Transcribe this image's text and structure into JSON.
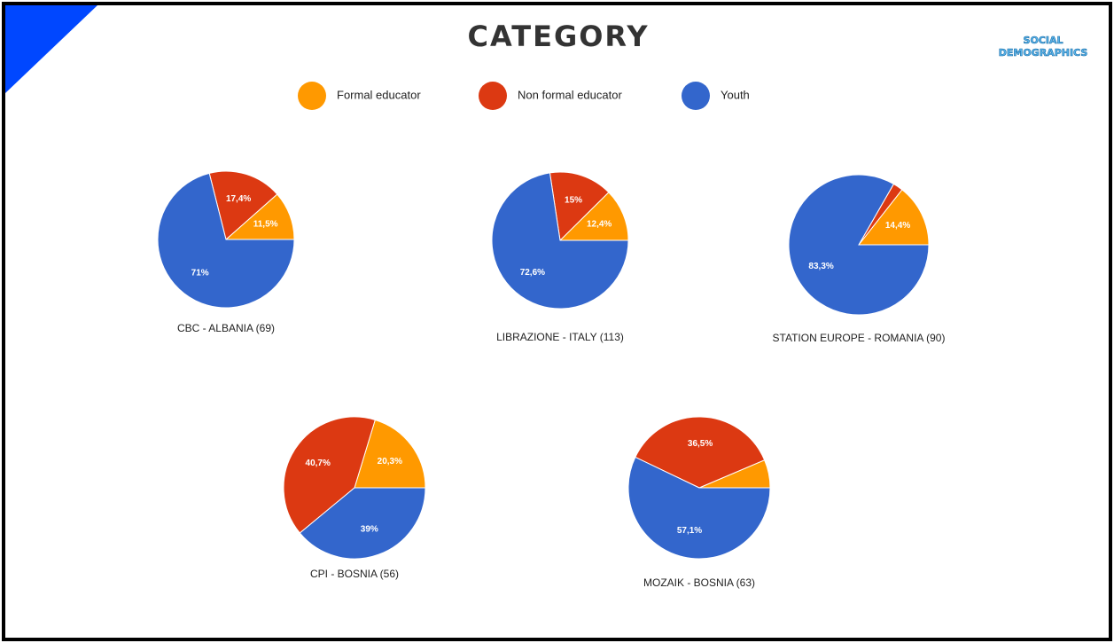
{
  "header": {
    "title": "CATEGORY",
    "logo": [
      "SOCIAL",
      "DEMOGRAPHICS"
    ]
  },
  "chart_data": [
    {
      "type": "pie",
      "title": "CBC - ALBANIA (69)",
      "categories": [
        "Formal educator",
        "Non formal educator",
        "Youth"
      ],
      "colors": [
        "#ff9900",
        "#dc3912",
        "#3366cc"
      ],
      "values": [
        11.5,
        17.4,
        71
      ],
      "value_labels": [
        "11,5%",
        "17,4%",
        "71%"
      ]
    },
    {
      "type": "pie",
      "title": "LIBRAZIONE - ITALY (113)",
      "categories": [
        "Formal educator",
        "Non formal educator",
        "Youth"
      ],
      "colors": [
        "#ff9900",
        "#dc3912",
        "#3366cc"
      ],
      "values": [
        12.4,
        15,
        72.6
      ],
      "value_labels": [
        "12,4%",
        "15%",
        "72,6%"
      ]
    },
    {
      "type": "pie",
      "title": "STATION EUROPE - ROMANIA (90)",
      "categories": [
        "Formal educator",
        "Non formal educator",
        "Youth"
      ],
      "colors": [
        "#ff9900",
        "#dc3912",
        "#3366cc"
      ],
      "values": [
        14.4,
        2.3,
        83.3
      ],
      "value_labels": [
        "14,4%",
        null,
        "83,3%"
      ]
    },
    {
      "type": "pie",
      "title": "CPI - BOSNIA (56)",
      "categories": [
        "Formal educator",
        "Non formal educator",
        "Youth"
      ],
      "colors": [
        "#ff9900",
        "#dc3912",
        "#3366cc"
      ],
      "values": [
        20.3,
        40.7,
        39
      ],
      "value_labels": [
        "20,3%",
        "40,7%",
        "39%"
      ]
    },
    {
      "type": "pie",
      "title": "MOZAIK - BOSNIA  (63)",
      "categories": [
        "Formal educator",
        "Non formal educator",
        "Youth"
      ],
      "colors": [
        "#ff9900",
        "#dc3912",
        "#3366cc"
      ],
      "values": [
        6.4,
        36.5,
        57.1
      ],
      "value_labels": [
        null,
        "36,5%",
        "57,1%"
      ]
    }
  ]
}
